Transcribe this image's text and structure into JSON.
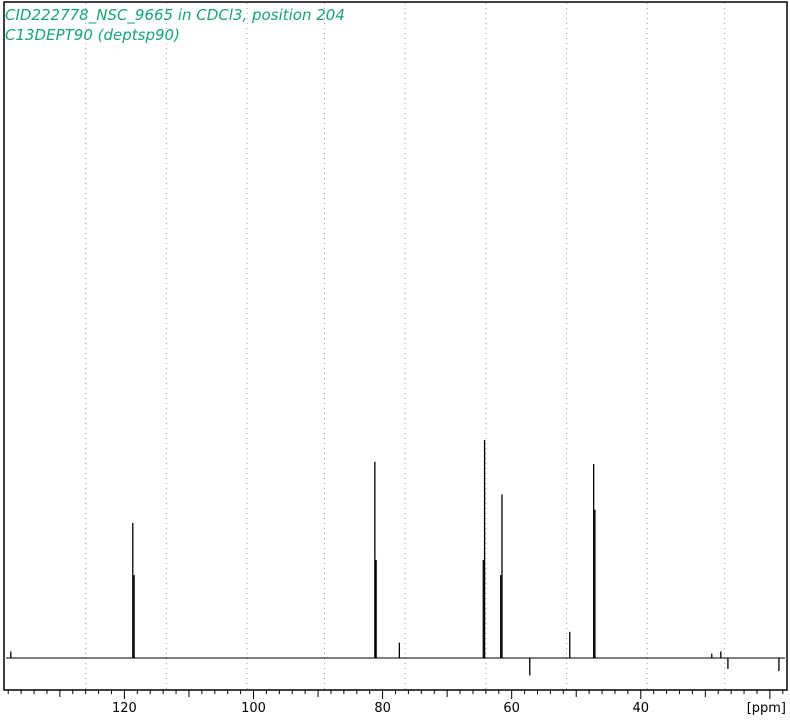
{
  "colors": {
    "title": "#16a37a",
    "trace": "#000000",
    "grid": "#9a9a9a",
    "frame": "#000000"
  },
  "header": {
    "title": "CID222778_NSC_9665 in CDCl3, position 204",
    "subtitle": "C13DEPT90 (deptsp90)"
  },
  "chart_data": {
    "type": "line",
    "title": "CID222778_NSC_9665 in CDCl3, position 204",
    "subtitle": "C13DEPT90 (deptsp90)",
    "xlabel": "[ppm]",
    "x_reversed": true,
    "xlim": [
      138.5,
      17.5
    ],
    "ylim": [
      -0.15,
      1.0
    ],
    "grid": "vertical-dotted",
    "ticks": [
      120,
      100,
      80,
      60,
      40
    ],
    "minor_tick_step": 2,
    "grid_lines": [
      126,
      113.5,
      101,
      89,
      76.5,
      64,
      51.5,
      39,
      27
    ],
    "peaks": [
      {
        "ppm": 137.6,
        "height": 0.03
      },
      {
        "ppm": 118.7,
        "height": 0.62
      },
      {
        "ppm": 118.5,
        "height": 0.38
      },
      {
        "ppm": 81.2,
        "height": 0.9
      },
      {
        "ppm": 81.0,
        "height": 0.45
      },
      {
        "ppm": 77.4,
        "height": 0.07
      },
      {
        "ppm": 64.2,
        "height": 1.0
      },
      {
        "ppm": 64.4,
        "height": 0.45
      },
      {
        "ppm": 61.5,
        "height": 0.75
      },
      {
        "ppm": 61.7,
        "height": 0.38
      },
      {
        "ppm": 57.2,
        "height": -0.08
      },
      {
        "ppm": 51.0,
        "height": 0.12
      },
      {
        "ppm": 47.3,
        "height": 0.89
      },
      {
        "ppm": 47.1,
        "height": 0.68
      },
      {
        "ppm": 29.0,
        "height": 0.02
      },
      {
        "ppm": 27.6,
        "height": 0.03
      },
      {
        "ppm": 26.5,
        "height": -0.05
      },
      {
        "ppm": 18.6,
        "height": -0.06
      }
    ]
  }
}
